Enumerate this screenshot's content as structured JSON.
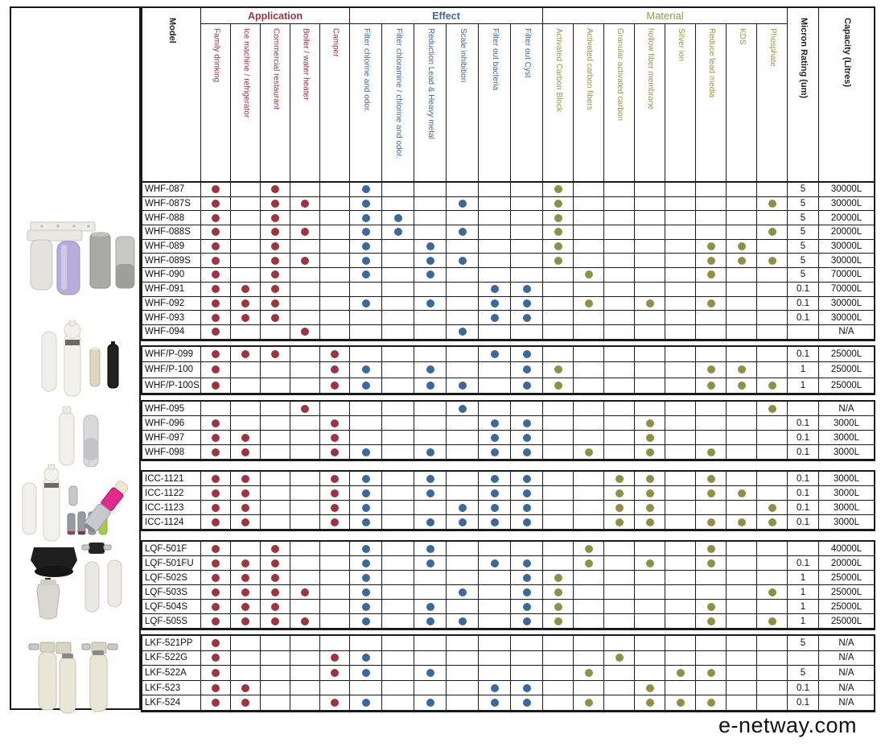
{
  "header": {
    "model_label": "Model",
    "micron_label": "Micron Rating (um)",
    "capacity_label": "Capacity (Litres)",
    "groups": [
      {
        "label": "Application",
        "color": "#9c3540",
        "columns": [
          "Family drinking",
          "Ice machine / refrigerator",
          "Commercial restaurant",
          "Boiler / water heater",
          "Camper"
        ]
      },
      {
        "label": "Effect",
        "color": "#3e689c",
        "columns": [
          "Filter chlorine and odor.",
          "Filter chloramine / chlorine and odor.",
          "Reduction Lead & Heavy metal",
          "Scale inhibition",
          "Filter out bacteria",
          "Filter out Cyst"
        ]
      },
      {
        "label": "Material",
        "color": "#97974d",
        "columns": [
          "Activated Carbon Block",
          "Activated carbon fibers",
          "Granular activated carbon",
          "hollow fiber membrane",
          "Silver ion",
          "Reduce lead media",
          "KDS",
          "Phosphate"
        ]
      }
    ]
  },
  "dot_colors": {
    "application": "#9c3540",
    "effect": "#3e689c",
    "material": "#8f9048"
  },
  "product_images": [
    "twin-housing-undersink-filter-with-cartridges",
    "inline-water-filters",
    "inline-filter-cartridges",
    "compact-filters-and-shower-filter",
    "filter-heads-and-replacement-bottles",
    "twin-cylinder-filter-systems"
  ],
  "product_groups": [
    {
      "rows": [
        {
          "model": "WHF-087",
          "app": [
            1,
            0,
            1,
            0,
            0
          ],
          "effect": [
            1,
            0,
            0,
            0,
            0,
            0
          ],
          "material": [
            1,
            0,
            0,
            0,
            0,
            0,
            0,
            0
          ],
          "micron": "5",
          "capacity": "30000L"
        },
        {
          "model": "WHF-087S",
          "app": [
            1,
            0,
            1,
            1,
            0
          ],
          "effect": [
            1,
            0,
            0,
            1,
            0,
            0
          ],
          "material": [
            1,
            0,
            0,
            0,
            0,
            0,
            0,
            1
          ],
          "micron": "5",
          "capacity": "30000L"
        },
        {
          "model": "WHF-088",
          "app": [
            1,
            0,
            1,
            0,
            0
          ],
          "effect": [
            1,
            1,
            0,
            0,
            0,
            0
          ],
          "material": [
            1,
            0,
            0,
            0,
            0,
            0,
            0,
            0
          ],
          "micron": "5",
          "capacity": "20000L"
        },
        {
          "model": "WHF-088S",
          "app": [
            1,
            0,
            1,
            1,
            0
          ],
          "effect": [
            1,
            1,
            0,
            1,
            0,
            0
          ],
          "material": [
            1,
            0,
            0,
            0,
            0,
            0,
            0,
            1
          ],
          "micron": "5",
          "capacity": "20000L"
        },
        {
          "model": "WHF-089",
          "app": [
            1,
            0,
            1,
            0,
            0
          ],
          "effect": [
            1,
            0,
            1,
            0,
            0,
            0
          ],
          "material": [
            1,
            0,
            0,
            0,
            0,
            1,
            1,
            0
          ],
          "micron": "5",
          "capacity": "30000L"
        },
        {
          "model": "WHF-089S",
          "app": [
            1,
            0,
            1,
            1,
            0
          ],
          "effect": [
            1,
            0,
            1,
            1,
            0,
            0
          ],
          "material": [
            1,
            0,
            0,
            0,
            0,
            1,
            1,
            1
          ],
          "micron": "5",
          "capacity": "30000L"
        },
        {
          "model": "WHF-090",
          "app": [
            1,
            0,
            1,
            0,
            0
          ],
          "effect": [
            1,
            0,
            1,
            0,
            0,
            0
          ],
          "material": [
            0,
            1,
            0,
            0,
            0,
            1,
            0,
            0
          ],
          "micron": "5",
          "capacity": "70000L"
        },
        {
          "model": "WHF-091",
          "app": [
            1,
            1,
            1,
            0,
            0
          ],
          "effect": [
            0,
            0,
            0,
            0,
            1,
            1
          ],
          "material": [
            0,
            0,
            0,
            0,
            0,
            0,
            0,
            0
          ],
          "micron": "0.1",
          "capacity": "70000L"
        },
        {
          "model": "WHF-092",
          "app": [
            1,
            1,
            1,
            0,
            0
          ],
          "effect": [
            1,
            0,
            1,
            0,
            1,
            1
          ],
          "material": [
            0,
            1,
            0,
            1,
            0,
            1,
            0,
            0
          ],
          "micron": "0.1",
          "capacity": "30000L"
        },
        {
          "model": "WHF-093",
          "app": [
            1,
            1,
            1,
            0,
            0
          ],
          "effect": [
            0,
            0,
            0,
            0,
            1,
            1
          ],
          "material": [
            0,
            0,
            0,
            0,
            0,
            0,
            0,
            0
          ],
          "micron": "0.1",
          "capacity": "30000L"
        },
        {
          "model": "WHF-094",
          "app": [
            1,
            0,
            0,
            1,
            0
          ],
          "effect": [
            0,
            0,
            0,
            1,
            0,
            0
          ],
          "material": [
            0,
            0,
            0,
            0,
            0,
            0,
            0,
            0
          ],
          "micron": "",
          "capacity": "N/A"
        }
      ]
    },
    {
      "rows": [
        {
          "model": "WHF/P-099",
          "app": [
            1,
            1,
            1,
            0,
            1
          ],
          "effect": [
            0,
            0,
            0,
            0,
            1,
            1
          ],
          "material": [
            0,
            0,
            0,
            0,
            0,
            0,
            0,
            0
          ],
          "micron": "0.1",
          "capacity": "25000L"
        },
        {
          "model": "WHF/P-100",
          "app": [
            1,
            0,
            0,
            0,
            1
          ],
          "effect": [
            1,
            0,
            1,
            0,
            0,
            1
          ],
          "material": [
            1,
            0,
            0,
            0,
            0,
            1,
            1,
            0
          ],
          "micron": "1",
          "capacity": "25000L"
        },
        {
          "model": "WHF/P-100S",
          "app": [
            1,
            0,
            0,
            0,
            1
          ],
          "effect": [
            1,
            0,
            1,
            1,
            0,
            1
          ],
          "material": [
            1,
            0,
            0,
            0,
            0,
            1,
            1,
            1
          ],
          "micron": "1",
          "capacity": "25000L"
        }
      ]
    },
    {
      "rows": [
        {
          "model": "WHF-095",
          "app": [
            0,
            0,
            0,
            1,
            0
          ],
          "effect": [
            0,
            0,
            0,
            1,
            0,
            0
          ],
          "material": [
            0,
            0,
            0,
            0,
            0,
            0,
            0,
            1
          ],
          "micron": "",
          "capacity": "N/A"
        },
        {
          "model": "WHF-096",
          "app": [
            1,
            0,
            0,
            0,
            1
          ],
          "effect": [
            0,
            0,
            0,
            0,
            1,
            1
          ],
          "material": [
            0,
            0,
            0,
            1,
            0,
            0,
            0,
            0
          ],
          "micron": "0.1",
          "capacity": "3000L"
        },
        {
          "model": "WHF-097",
          "app": [
            1,
            1,
            0,
            0,
            1
          ],
          "effect": [
            0,
            0,
            0,
            0,
            1,
            1
          ],
          "material": [
            0,
            0,
            0,
            1,
            0,
            0,
            0,
            0
          ],
          "micron": "0.1",
          "capacity": "3000L"
        },
        {
          "model": "WHF-098",
          "app": [
            1,
            1,
            0,
            0,
            1
          ],
          "effect": [
            1,
            0,
            1,
            0,
            1,
            1
          ],
          "material": [
            0,
            1,
            0,
            1,
            0,
            1,
            0,
            0
          ],
          "micron": "0.1",
          "capacity": "3000L"
        }
      ]
    },
    {
      "rows": [
        {
          "model": "ICC-1121",
          "app": [
            1,
            1,
            0,
            0,
            1
          ],
          "effect": [
            1,
            0,
            1,
            0,
            1,
            1
          ],
          "material": [
            0,
            0,
            1,
            1,
            0,
            1,
            0,
            0
          ],
          "micron": "0.1",
          "capacity": "3000L"
        },
        {
          "model": "ICC-1122",
          "app": [
            1,
            1,
            0,
            0,
            1
          ],
          "effect": [
            1,
            0,
            1,
            0,
            1,
            1
          ],
          "material": [
            0,
            0,
            1,
            1,
            0,
            1,
            1,
            0
          ],
          "micron": "0.1",
          "capacity": "3000L"
        },
        {
          "model": "ICC-1123",
          "app": [
            1,
            1,
            0,
            0,
            1
          ],
          "effect": [
            1,
            0,
            0,
            1,
            1,
            1
          ],
          "material": [
            0,
            0,
            1,
            1,
            0,
            0,
            0,
            1
          ],
          "micron": "0.1",
          "capacity": "3000L"
        },
        {
          "model": "ICC-1124",
          "app": [
            1,
            1,
            0,
            0,
            1
          ],
          "effect": [
            1,
            0,
            1,
            1,
            1,
            1
          ],
          "material": [
            0,
            0,
            1,
            1,
            0,
            1,
            1,
            1
          ],
          "micron": "0.1",
          "capacity": "3000L"
        }
      ]
    },
    {
      "rows": [
        {
          "model": "LQF-501F",
          "app": [
            1,
            0,
            1,
            0,
            0
          ],
          "effect": [
            1,
            0,
            1,
            0,
            0,
            0
          ],
          "material": [
            0,
            1,
            0,
            0,
            0,
            1,
            0,
            0
          ],
          "micron": "",
          "capacity": "40000L"
        },
        {
          "model": "LQF-501FU",
          "app": [
            1,
            1,
            1,
            0,
            0
          ],
          "effect": [
            1,
            0,
            1,
            0,
            1,
            1
          ],
          "material": [
            0,
            1,
            0,
            1,
            0,
            1,
            0,
            0
          ],
          "micron": "0.1",
          "capacity": "20000L"
        },
        {
          "model": "LQF-502S",
          "app": [
            1,
            1,
            1,
            0,
            0
          ],
          "effect": [
            1,
            0,
            0,
            0,
            0,
            1
          ],
          "material": [
            1,
            0,
            0,
            0,
            0,
            0,
            0,
            0
          ],
          "micron": "1",
          "capacity": "25000L"
        },
        {
          "model": "LQF-503S",
          "app": [
            1,
            1,
            1,
            1,
            0
          ],
          "effect": [
            1,
            0,
            0,
            1,
            0,
            1
          ],
          "material": [
            1,
            0,
            0,
            0,
            0,
            0,
            0,
            1
          ],
          "micron": "1",
          "capacity": "25000L"
        },
        {
          "model": "LQF-504S",
          "app": [
            1,
            1,
            1,
            0,
            0
          ],
          "effect": [
            1,
            0,
            1,
            0,
            0,
            1
          ],
          "material": [
            1,
            0,
            0,
            0,
            0,
            1,
            0,
            0
          ],
          "micron": "1",
          "capacity": "25000L"
        },
        {
          "model": "LQF-505S",
          "app": [
            1,
            1,
            1,
            1,
            0
          ],
          "effect": [
            1,
            0,
            1,
            1,
            0,
            1
          ],
          "material": [
            1,
            0,
            0,
            0,
            0,
            1,
            0,
            1
          ],
          "micron": "1",
          "capacity": "25000L"
        }
      ]
    },
    {
      "rows": [
        {
          "model": "LKF-521PP",
          "app": [
            1,
            0,
            0,
            0,
            0
          ],
          "effect": [
            0,
            0,
            0,
            0,
            0,
            0
          ],
          "material": [
            0,
            0,
            0,
            0,
            0,
            0,
            0,
            0
          ],
          "micron": "5",
          "capacity": "N/A"
        },
        {
          "model": "LKF-522G",
          "app": [
            1,
            0,
            0,
            0,
            1
          ],
          "effect": [
            1,
            0,
            0,
            0,
            0,
            0
          ],
          "material": [
            0,
            0,
            1,
            0,
            0,
            0,
            0,
            0
          ],
          "micron": "",
          "capacity": "N/A"
        },
        {
          "model": "LKF-522A",
          "app": [
            1,
            0,
            0,
            0,
            1
          ],
          "effect": [
            1,
            0,
            1,
            0,
            0,
            0
          ],
          "material": [
            0,
            1,
            0,
            0,
            1,
            1,
            0,
            0
          ],
          "micron": "5",
          "capacity": "N/A"
        },
        {
          "model": "LKF-523",
          "app": [
            1,
            1,
            0,
            0,
            0
          ],
          "effect": [
            0,
            0,
            0,
            0,
            1,
            1
          ],
          "material": [
            0,
            0,
            0,
            1,
            0,
            0,
            0,
            0
          ],
          "micron": "0.1",
          "capacity": "N/A"
        },
        {
          "model": "LKF-524",
          "app": [
            1,
            1,
            0,
            0,
            1
          ],
          "effect": [
            1,
            0,
            1,
            0,
            1,
            1
          ],
          "material": [
            0,
            1,
            0,
            1,
            1,
            1,
            0,
            0
          ],
          "micron": "0.1",
          "capacity": "N/A"
        }
      ]
    }
  ],
  "watermark": "e-netway.com"
}
